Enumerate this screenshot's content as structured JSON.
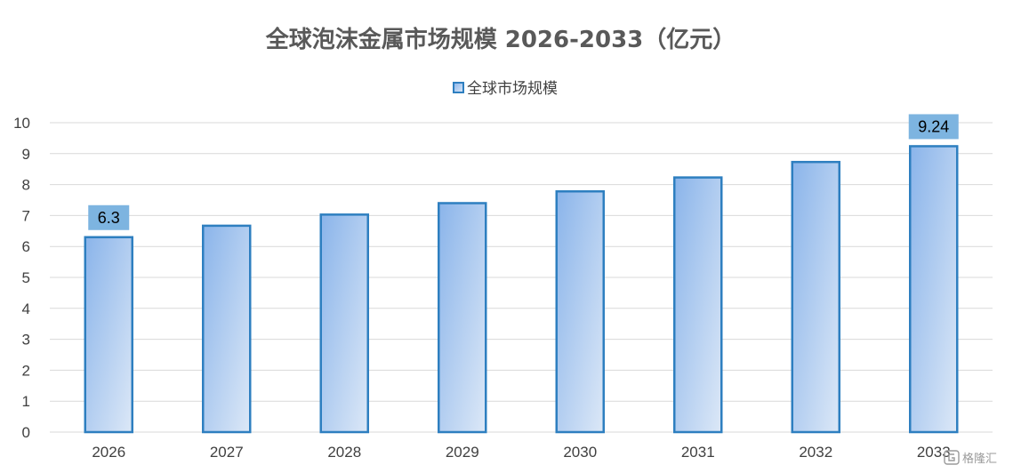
{
  "chart_data": {
    "type": "bar",
    "title": "全球泡沫金属市场规模 2026-2033（亿元）",
    "categories": [
      "2026",
      "2027",
      "2028",
      "2029",
      "2030",
      "2031",
      "2032",
      "2033"
    ],
    "series": [
      {
        "name": "全球市场规模",
        "values": [
          6.3,
          6.67,
          7.03,
          7.4,
          7.78,
          8.23,
          8.73,
          9.24
        ]
      }
    ],
    "data_labels": [
      {
        "category": "2026",
        "text": "6.3"
      },
      {
        "category": "2033",
        "text": "9.24"
      }
    ],
    "ylim": [
      0,
      10
    ],
    "yticks": [
      "0",
      "1",
      "2",
      "3",
      "4",
      "5",
      "6",
      "7",
      "8",
      "9",
      "10"
    ],
    "grid": true,
    "legend": "top-center",
    "colors": {
      "bar_top": "#8ab4ea",
      "bar_bottom": "#dce8f7",
      "bar_border": "#2e7fc0",
      "label_box": "#7db4e0",
      "grid": "#d9d9d9"
    }
  },
  "watermark": {
    "text": "格隆汇",
    "icon": "gelonghui-logo-icon"
  }
}
